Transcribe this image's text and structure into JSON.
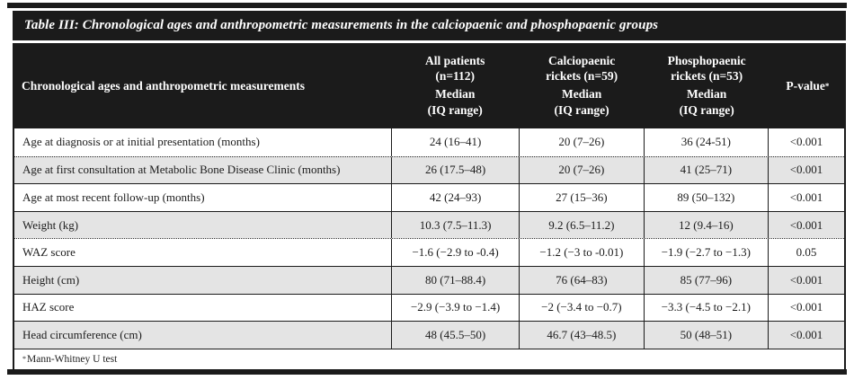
{
  "title": "Table III: Chronological ages and anthropometric measurements in the calciopaenic and phosphopaenic groups",
  "header": {
    "row_header": "Chronological ages and anthropometric measurements",
    "groups": [
      {
        "name1": "All patients",
        "name2": "(n=112)",
        "stat1": "Median",
        "stat2": "(IQ range)"
      },
      {
        "name1": "Calciopaenic",
        "name2": "rickets (n=59)",
        "stat1": "Median",
        "stat2": "(IQ range)"
      },
      {
        "name1": "Phosphopaenic",
        "name2": "rickets (n=53)",
        "stat1": "Median",
        "stat2": "(IQ range)"
      }
    ],
    "pvalue": {
      "label": "P-value",
      "sup": "*"
    }
  },
  "rows": [
    {
      "label": "Age at diagnosis or at initial presentation (months)",
      "all": "24 (16–41)",
      "calcio": "20 (7–26)",
      "phospho": "36 (24-51)",
      "p": "<0.001"
    },
    {
      "label": "Age at first consultation at Metabolic Bone Disease Clinic (months)",
      "all": "26 (17.5–48)",
      "calcio": "20 (7–26)",
      "phospho": "41 (25–71)",
      "p": "<0.001"
    },
    {
      "label": "Age at most recent follow-up (months)",
      "all": "42 (24–93)",
      "calcio": "27 (15–36)",
      "phospho": "89 (50–132)",
      "p": "<0.001"
    },
    {
      "label": "Weight (kg)",
      "all": "10.3 (7.5–11.3)",
      "calcio": "9.2 (6.5–11.2)",
      "phospho": "12 (9.4–16)",
      "p": "<0.001"
    },
    {
      "label": "WAZ score",
      "all": "−1.6 (−2.9 to -0.4)",
      "calcio": "−1.2 (−3 to -0.01)",
      "phospho": "−1.9 (−2.7 to −1.3)",
      "p": "0.05"
    },
    {
      "label": "Height (cm)",
      "all": "80 (71–88.4)",
      "calcio": "76 (64–83)",
      "phospho": "85 (77–96)",
      "p": "<0.001"
    },
    {
      "label": "HAZ score",
      "all": "−2.9 (−3.9 to −1.4)",
      "calcio": "−2 (−3.4 to −0.7)",
      "phospho": "−3.3 (−4.5 to −2.1)",
      "p": "<0.001"
    },
    {
      "label": "Head circumference (cm)",
      "all": "48 (45.5–50)",
      "calcio": "46.7 (43–48.5)",
      "phospho": "50 (48–51)",
      "p": "<0.001"
    }
  ],
  "footnote": {
    "sup": "*",
    "text": "Mann-Whitney U test"
  },
  "colors": {
    "bar_black": "#1b1b1b",
    "shaded_row": "#e4e4e4",
    "text": "#1c1c1c",
    "page_bg": "#ffffff"
  }
}
